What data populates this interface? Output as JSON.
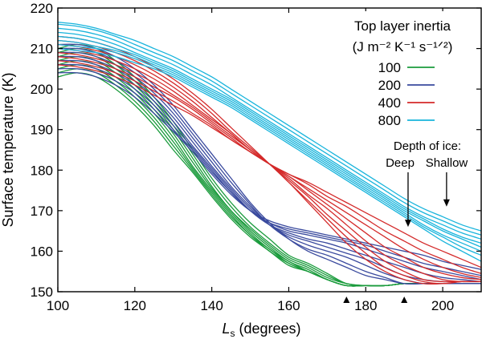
{
  "chart_data": {
    "type": "line",
    "xlabel_symbol": "L",
    "xlabel_sub": "s",
    "xlabel_rest": " (degrees)",
    "ylabel": "Surface temperature (K)",
    "xlim": [
      100,
      210
    ],
    "ylim": [
      150,
      220
    ],
    "xticks": [
      100,
      120,
      140,
      160,
      180,
      200
    ],
    "yticks": [
      150,
      160,
      170,
      180,
      190,
      200,
      210,
      220
    ],
    "legend": {
      "title_line1": "Top layer inertia",
      "title_line2": "(J m⁻² K⁻¹ s⁻¹ᐟ²)",
      "position": "top-right"
    },
    "annotation": {
      "heading": "Depth of ice:",
      "deep": "Deep",
      "shallow": "Shallow",
      "deep_arrow_ls": 191,
      "shallow_arrow_ls": 201,
      "arrow_target_temps": [
        166,
        171
      ]
    },
    "x_markers": [
      175,
      190
    ],
    "series": [
      {
        "name": "100",
        "color": "#1a9b3c",
        "x": [
          100,
          105,
          110,
          115,
          120,
          125,
          130,
          135,
          140,
          145,
          150,
          155,
          160,
          165,
          170,
          175,
          180,
          185,
          190,
          195,
          200,
          205,
          210
        ],
        "curves": [
          [
            210,
            211,
            210,
            207,
            203,
            198,
            192,
            185,
            178,
            172,
            167,
            163,
            159,
            157,
            154.5,
            152,
            151.5,
            151.5,
            152,
            152,
            152,
            152,
            152
          ],
          [
            209,
            210,
            209,
            206,
            202,
            197,
            191,
            184,
            177,
            171,
            166,
            162,
            158.5,
            156.5,
            154,
            152,
            151.5,
            151.5,
            152,
            152,
            152,
            152,
            152
          ],
          [
            208,
            209,
            208,
            205,
            201,
            196,
            190,
            183,
            176,
            170,
            165.5,
            161.5,
            158,
            156,
            153.5,
            152,
            151.5,
            151.5,
            152,
            152,
            152,
            152,
            152
          ],
          [
            207,
            208,
            207,
            204,
            200,
            195,
            189,
            182,
            175.5,
            170,
            165,
            161,
            157.5,
            155.5,
            153,
            151.5,
            151.5,
            151.5,
            152,
            152,
            152,
            152,
            152
          ],
          [
            206,
            207,
            206,
            203,
            199,
            194,
            188,
            181,
            175,
            169.5,
            164.5,
            160.5,
            157.5,
            155,
            153,
            151.5,
            151.5,
            151.5,
            152,
            152,
            152,
            152,
            152
          ],
          [
            205,
            206,
            205,
            202,
            198,
            193,
            187,
            180.5,
            174.5,
            169,
            164,
            160.5,
            157,
            155,
            153,
            151.5,
            151.5,
            151.5,
            152,
            152,
            152,
            152,
            152
          ],
          [
            204,
            205,
            204,
            201,
            197,
            192,
            186,
            180,
            174,
            168.5,
            164,
            160,
            157,
            155,
            153,
            151.5,
            151.5,
            151.5,
            152,
            152,
            152,
            152,
            152
          ],
          [
            203,
            204,
            203,
            200,
            196,
            191,
            185,
            179.5,
            173.5,
            168,
            163.5,
            160,
            156.5,
            155,
            153,
            151.5,
            151.5,
            151.5,
            152,
            152,
            152,
            152,
            152
          ]
        ]
      },
      {
        "name": "200",
        "color": "#3a4a9e",
        "x": [
          100,
          105,
          110,
          115,
          120,
          125,
          130,
          135,
          140,
          145,
          150,
          155,
          160,
          165,
          170,
          175,
          180,
          185,
          190,
          195,
          200,
          205,
          210
        ],
        "curves": [
          [
            211,
            211,
            210,
            208,
            205,
            201,
            196,
            190,
            184,
            178,
            172,
            167,
            163,
            160,
            158,
            156,
            154,
            153,
            152,
            152,
            152,
            152,
            152
          ],
          [
            210,
            210,
            209,
            207,
            204,
            200,
            195,
            189,
            183,
            177,
            171.5,
            166.5,
            163,
            160.5,
            159,
            157,
            155,
            153.5,
            152,
            152,
            152,
            152,
            152
          ],
          [
            209,
            209,
            208,
            206,
            203,
            199,
            194,
            188,
            182,
            176,
            171,
            166.5,
            163.5,
            161.5,
            160,
            158.5,
            156.5,
            154.5,
            153,
            152,
            152,
            152,
            152
          ],
          [
            208,
            208,
            207,
            205,
            202,
            198,
            193,
            187,
            181,
            175.5,
            170.5,
            166.5,
            164,
            162.5,
            161,
            159.5,
            158,
            156,
            154,
            153,
            152.5,
            152.5,
            152.5
          ],
          [
            207,
            207,
            206,
            204,
            201,
            197,
            192,
            186,
            180.5,
            175,
            170,
            166.5,
            164.5,
            163,
            162,
            160.5,
            159,
            157.5,
            156,
            154.5,
            153.5,
            153,
            152.5
          ],
          [
            206,
            206,
            205,
            203,
            200,
            196,
            191,
            185.5,
            180,
            174.5,
            170,
            167,
            165,
            164,
            163,
            162,
            160.5,
            159,
            157.5,
            156,
            155,
            154,
            153
          ],
          [
            205,
            205,
            204,
            202,
            199,
            195,
            190,
            185,
            179.5,
            174.5,
            170,
            167,
            165.5,
            164.5,
            163.5,
            162.5,
            161.5,
            160,
            158.5,
            157,
            156,
            155,
            154
          ],
          [
            204,
            204,
            203,
            201,
            198,
            194,
            189.5,
            184.5,
            179,
            174,
            170,
            167.5,
            166,
            165,
            164,
            163,
            162,
            161,
            160,
            159,
            157.5,
            156.5,
            155.5
          ]
        ]
      },
      {
        "name": "400",
        "color": "#d42a2a",
        "x": [
          100,
          105,
          110,
          115,
          120,
          125,
          130,
          135,
          140,
          145,
          150,
          155,
          160,
          165,
          170,
          175,
          180,
          185,
          190,
          195,
          200,
          205,
          210
        ],
        "curves": [
          [
            213,
            212.5,
            211.5,
            210,
            208,
            205.5,
            202.5,
            199,
            195,
            190.5,
            186,
            181.5,
            177,
            172,
            167,
            162,
            158,
            155,
            153,
            152,
            152,
            152.5,
            152.5
          ],
          [
            212,
            211.5,
            210.5,
            209,
            207,
            204.5,
            201.5,
            198,
            194,
            189.5,
            185.5,
            181.5,
            177,
            172.5,
            168,
            163.5,
            159.5,
            156,
            154,
            152.5,
            152,
            152.5,
            152.5
          ],
          [
            211,
            210.5,
            209.5,
            208,
            206,
            203.5,
            200.5,
            197,
            193,
            189,
            185,
            181.5,
            177.5,
            173.5,
            169,
            165,
            161,
            157.5,
            155,
            153,
            152.5,
            152.5,
            152.5
          ],
          [
            210,
            209.5,
            208.5,
            207,
            205,
            202.5,
            199.5,
            196,
            192.5,
            189,
            185,
            181.5,
            178,
            174,
            170.5,
            166.5,
            162.5,
            159,
            156.5,
            154.5,
            153,
            152.5,
            152.5
          ],
          [
            209,
            208.5,
            207.5,
            206,
            204,
            201.5,
            198.5,
            195.5,
            192,
            188.5,
            185,
            181.5,
            178.5,
            175,
            171.5,
            168,
            164.5,
            161,
            158.5,
            156,
            154.5,
            153.5,
            153
          ],
          [
            208,
            207.5,
            206.5,
            205,
            203,
            200.5,
            198,
            195,
            191.5,
            188,
            184.5,
            181.5,
            178.5,
            175.5,
            172.5,
            169.5,
            166.5,
            163.5,
            160.5,
            158,
            156,
            154.5,
            153.5
          ],
          [
            207,
            206.5,
            205.5,
            204,
            202,
            199.5,
            197,
            194,
            191,
            187.5,
            184.5,
            181.5,
            179,
            176.5,
            173.5,
            171,
            168,
            165,
            162.5,
            160,
            158,
            156,
            154.5
          ],
          [
            206,
            205.5,
            204.5,
            203,
            201,
            198.5,
            196,
            193.5,
            190.5,
            187.5,
            184.5,
            181.5,
            179,
            177,
            174.5,
            172,
            169.5,
            167,
            164.5,
            162,
            160,
            158,
            156
          ]
        ]
      },
      {
        "name": "800",
        "color": "#18b4dc",
        "x": [
          100,
          105,
          110,
          115,
          120,
          125,
          130,
          135,
          140,
          145,
          150,
          155,
          160,
          165,
          170,
          175,
          180,
          185,
          190,
          195,
          200,
          205,
          210
        ],
        "curves": [
          [
            216.5,
            216,
            215,
            213.5,
            212,
            210,
            208,
            205.5,
            203,
            200,
            197,
            194,
            191,
            188,
            185,
            182,
            179,
            176,
            173,
            170.5,
            168.5,
            166.5,
            165
          ],
          [
            216,
            215.5,
            214.5,
            213,
            211,
            209,
            207,
            204.5,
            202,
            199,
            196,
            193,
            190,
            187,
            184,
            181,
            178,
            175,
            172,
            169.5,
            167.5,
            165.5,
            164
          ],
          [
            215,
            214.5,
            213.5,
            212,
            210,
            208,
            206,
            203.5,
            201,
            198,
            195,
            192,
            189,
            186,
            183,
            180,
            177,
            174,
            171,
            168.5,
            166.5,
            164.5,
            163
          ],
          [
            214,
            213.5,
            212.5,
            211,
            209,
            207,
            205,
            202.5,
            200,
            197.5,
            194.5,
            191.5,
            188.5,
            185.5,
            182.5,
            179.5,
            176.5,
            173.5,
            170.5,
            168,
            165.5,
            163.5,
            162
          ],
          [
            213,
            212.5,
            211.5,
            210,
            208.5,
            206.5,
            204.5,
            202,
            199.5,
            197,
            194,
            191,
            188,
            185,
            182,
            179,
            176,
            173,
            170,
            167.5,
            165,
            163,
            161
          ],
          [
            212,
            211.5,
            210.5,
            209.5,
            208,
            206,
            204,
            201.5,
            199,
            196.5,
            193.5,
            190.5,
            187.5,
            184.5,
            181.5,
            178.5,
            175.5,
            172.5,
            169.5,
            166.5,
            164,
            162,
            160
          ],
          [
            211,
            210.5,
            210,
            209,
            207.5,
            205.5,
            203.5,
            201,
            198.5,
            196,
            193,
            190,
            187,
            184,
            181,
            178,
            175,
            172,
            169,
            166,
            163.5,
            161,
            159
          ],
          [
            210,
            209.5,
            209,
            208,
            206.5,
            205,
            203,
            200.5,
            198,
            195.5,
            192.5,
            189.5,
            186.5,
            183.5,
            180.5,
            177.5,
            174.5,
            171.5,
            168.5,
            165.5,
            162.5,
            160,
            157.5
          ]
        ]
      }
    ]
  }
}
